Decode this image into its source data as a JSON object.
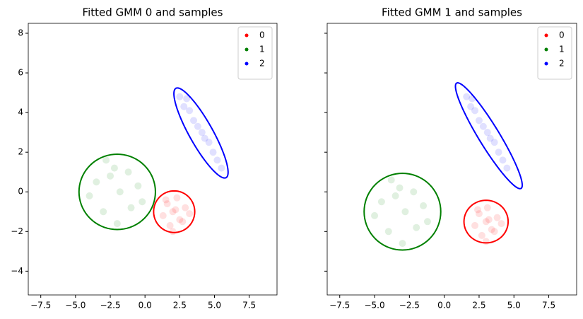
{
  "chart_data": [
    {
      "type": "scatter",
      "title": "Fitted GMM 0 and samples",
      "legend": "upper right",
      "xlim": [
        -8.4,
        9.5
      ],
      "ylim": [
        -5.2,
        8.5
      ],
      "xticks": [
        {
          "value": -7.5,
          "label": "−7.5"
        },
        {
          "value": -5,
          "label": "−5.0"
        },
        {
          "value": -2.5,
          "label": "−2.5"
        },
        {
          "value": 0,
          "label": "0.0"
        },
        {
          "value": 2.5,
          "label": "2.5"
        },
        {
          "value": 5,
          "label": "5.0"
        },
        {
          "value": 7.5,
          "label": "7.5"
        }
      ],
      "yticks": [
        {
          "value": -4,
          "label": "−4"
        },
        {
          "value": -2,
          "label": "−2"
        },
        0,
        2,
        4,
        6,
        8
      ],
      "series": [
        {
          "name": "0",
          "color": "#ff0000",
          "x": [
            1.6,
            2.5,
            2.0,
            2.9,
            1.3,
            2.3,
            1.8,
            2.7,
            2.2,
            1.5,
            2.0,
            3.2
          ],
          "y": [
            -0.6,
            -1.4,
            -1.0,
            -0.8,
            -1.2,
            -0.3,
            -1.7,
            -1.5,
            -0.9,
            -0.4,
            -2.0,
            -1.1
          ],
          "ellipse": {
            "center": [
              2.1,
              -1.0
            ],
            "width": 2.96,
            "height": 2.1,
            "angle": 0
          }
        },
        {
          "name": "1",
          "color": "#008000",
          "x": [
            -3.5,
            -1.0,
            -2.2,
            -0.5,
            -3.0,
            -1.8,
            -2.8,
            -1.2,
            -4.0,
            -2.0,
            -0.2,
            -2.5
          ],
          "y": [
            0.5,
            -0.8,
            1.2,
            0.3,
            -1.0,
            0.0,
            1.6,
            1.0,
            -0.2,
            -1.6,
            -0.5,
            0.8
          ],
          "ellipse": {
            "center": [
              -2.0,
              0.0
            ],
            "width": 5.5,
            "height": 3.8,
            "angle": 0
          }
        },
        {
          "name": "2",
          "color": "#0000ff",
          "x": [
            2.5,
            3.2,
            3.8,
            4.3,
            4.9,
            5.5,
            3.0,
            4.1,
            4.6,
            3.5,
            5.2,
            2.8
          ],
          "y": [
            4.8,
            4.1,
            3.3,
            2.7,
            2.0,
            1.2,
            4.7,
            3.0,
            2.5,
            3.6,
            1.6,
            4.3
          ],
          "ellipse": {
            "center": [
              4.03,
              2.97
            ],
            "width": 5.8,
            "height": 1.5,
            "angle": -50
          }
        }
      ]
    },
    {
      "type": "scatter",
      "title": "Fitted GMM 1 and samples",
      "legend": "upper right",
      "sharey": true,
      "xlim": [
        -8.4,
        9.5
      ],
      "ylim": [
        -5.2,
        8.5
      ],
      "xticks": [
        {
          "value": -7.5,
          "label": "−7.5"
        },
        {
          "value": -5,
          "label": "−5.0"
        },
        {
          "value": -2.5,
          "label": "−2.5"
        },
        {
          "value": 0,
          "label": "0.0"
        },
        {
          "value": 2.5,
          "label": "2.5"
        },
        {
          "value": 5,
          "label": "5.0"
        },
        {
          "value": 7.5,
          "label": "7.5"
        }
      ],
      "yticks": [
        -4,
        -2,
        0,
        2,
        4,
        6,
        8
      ],
      "series": [
        {
          "name": "0",
          "color": "#ff0000",
          "x": [
            2.5,
            3.4,
            3.0,
            3.8,
            2.2,
            3.1,
            2.7,
            3.6,
            3.2,
            2.4,
            3.0,
            4.1
          ],
          "y": [
            -1.1,
            -1.9,
            -1.5,
            -1.3,
            -1.7,
            -0.8,
            -2.2,
            -2.0,
            -1.4,
            -0.9,
            -2.5,
            -1.6
          ],
          "ellipse": {
            "center": [
              3.0,
              -1.5
            ],
            "width": 3.17,
            "height": 2.15,
            "angle": 0
          }
        },
        {
          "name": "1",
          "color": "#008000",
          "x": [
            -4.5,
            -2.0,
            -3.2,
            -1.5,
            -4.0,
            -2.8,
            -3.8,
            -2.2,
            -5.0,
            -3.0,
            -1.2,
            -3.5
          ],
          "y": [
            -0.5,
            -1.8,
            0.2,
            -0.7,
            -2.0,
            -1.0,
            0.6,
            0.0,
            -1.2,
            -2.6,
            -1.5,
            -0.2
          ],
          "ellipse": {
            "center": [
              -3.0,
              -1.0
            ],
            "width": 5.5,
            "height": 3.87,
            "angle": 0
          }
        },
        {
          "name": "2",
          "color": "#0000ff",
          "x": [
            1.6,
            2.2,
            2.8,
            3.3,
            3.9,
            4.5,
            2.0,
            3.1,
            3.6,
            2.5,
            4.2,
            1.9
          ],
          "y": [
            4.8,
            4.1,
            3.3,
            2.7,
            2.0,
            1.2,
            4.7,
            3.0,
            2.5,
            3.6,
            1.6,
            4.3
          ],
          "ellipse": {
            "center": [
              3.2,
              2.83
            ],
            "width": 7.06,
            "height": 1.3,
            "angle": -48.3
          }
        }
      ]
    }
  ]
}
